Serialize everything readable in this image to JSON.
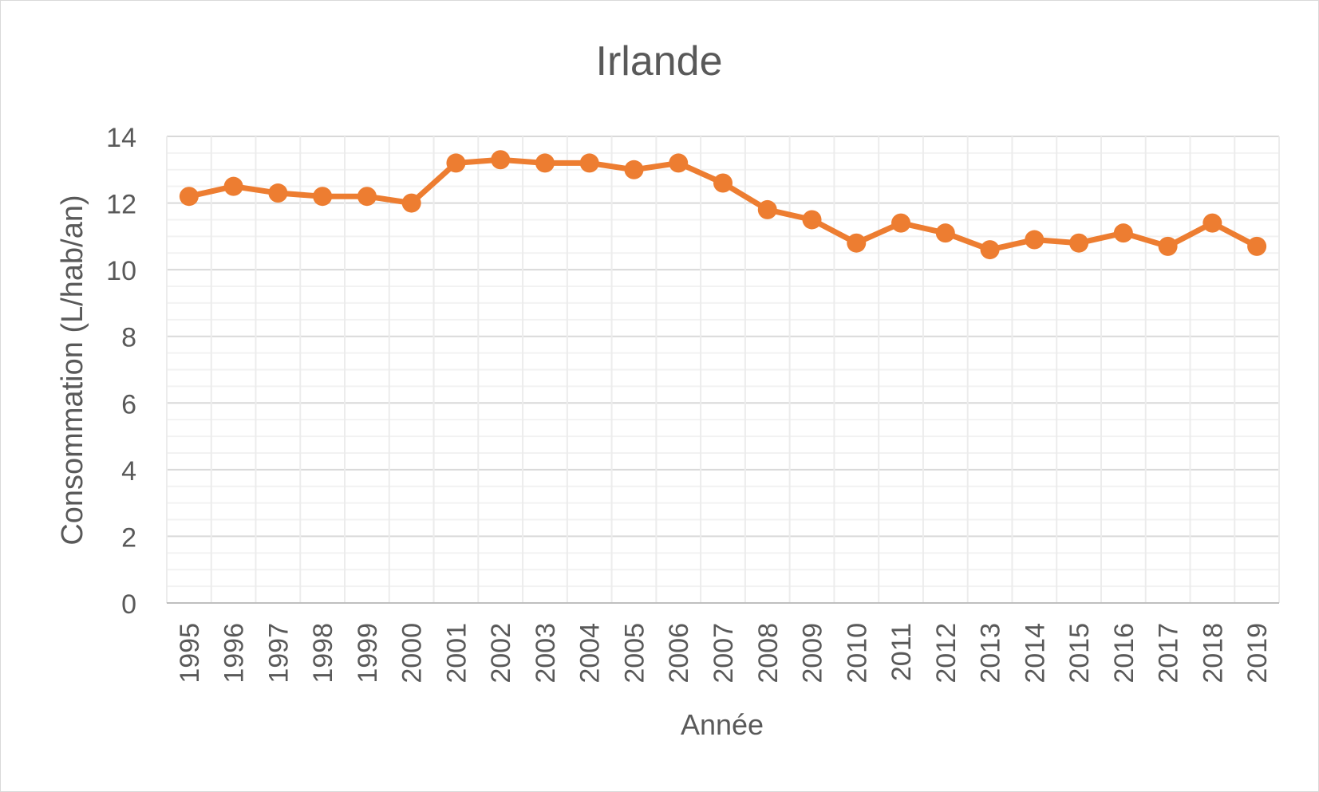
{
  "chart_data": {
    "type": "line",
    "title": "Irlande",
    "xlabel": "Année",
    "ylabel": "Consommation (L/hab/an)",
    "ylim": [
      0,
      14
    ],
    "y_ticks": [
      "0",
      "2",
      "4",
      "6",
      "8",
      "10",
      "12",
      "14"
    ],
    "grid": {
      "major": true,
      "minor": true
    },
    "legend": "none",
    "x": [
      "1995",
      "1996",
      "1997",
      "1998",
      "1999",
      "2000",
      "2001",
      "2002",
      "2003",
      "2004",
      "2005",
      "2006",
      "2007",
      "2008",
      "2009",
      "2010",
      "2011",
      "2012",
      "2013",
      "2014",
      "2015",
      "2016",
      "2017",
      "2018",
      "2019"
    ],
    "series": [
      {
        "color": "#ed7d31",
        "values": [
          12.2,
          12.5,
          12.3,
          12.2,
          12.2,
          12.0,
          13.2,
          13.3,
          13.2,
          13.2,
          13.0,
          13.2,
          12.6,
          11.8,
          11.5,
          10.8,
          11.4,
          11.1,
          10.6,
          10.9,
          10.8,
          11.1,
          10.7,
          11.4,
          10.7
        ]
      }
    ]
  }
}
